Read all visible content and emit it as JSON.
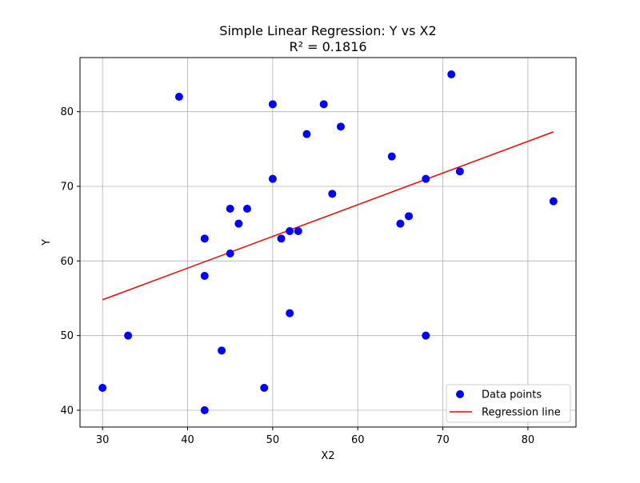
{
  "chart_data": {
    "type": "scatter",
    "title_line1": "Simple Linear Regression: Y vs X2",
    "title_line2": "R² = 0.1816",
    "xlabel": "X2",
    "ylabel": "Y",
    "xlim": [
      27.35,
      85.65
    ],
    "ylim": [
      37.75,
      87.25
    ],
    "xticks": [
      30,
      40,
      50,
      60,
      70,
      80
    ],
    "yticks": [
      40,
      50,
      60,
      70,
      80
    ],
    "grid": true,
    "legend_position": "lower-right",
    "series": [
      {
        "name": "Data points",
        "kind": "scatter",
        "color": "#0000ff",
        "points": [
          [
            30,
            43
          ],
          [
            33,
            50
          ],
          [
            39,
            82
          ],
          [
            42,
            63
          ],
          [
            42,
            58
          ],
          [
            42,
            40
          ],
          [
            44,
            48
          ],
          [
            45,
            67
          ],
          [
            45,
            61
          ],
          [
            46,
            65
          ],
          [
            47,
            67
          ],
          [
            49,
            43
          ],
          [
            50,
            81
          ],
          [
            50,
            71
          ],
          [
            51,
            63
          ],
          [
            52,
            64
          ],
          [
            52,
            53
          ],
          [
            53,
            64
          ],
          [
            54,
            77
          ],
          [
            56,
            81
          ],
          [
            57,
            69
          ],
          [
            58,
            78
          ],
          [
            64,
            74
          ],
          [
            65,
            65
          ],
          [
            66,
            66
          ],
          [
            68,
            71
          ],
          [
            68,
            50
          ],
          [
            71,
            85
          ],
          [
            72,
            72
          ],
          [
            83,
            68
          ]
        ]
      },
      {
        "name": "Regression line",
        "kind": "line",
        "color": "#ff0000",
        "points": [
          [
            30,
            54.8
          ],
          [
            83,
            77.3
          ]
        ]
      }
    ]
  }
}
